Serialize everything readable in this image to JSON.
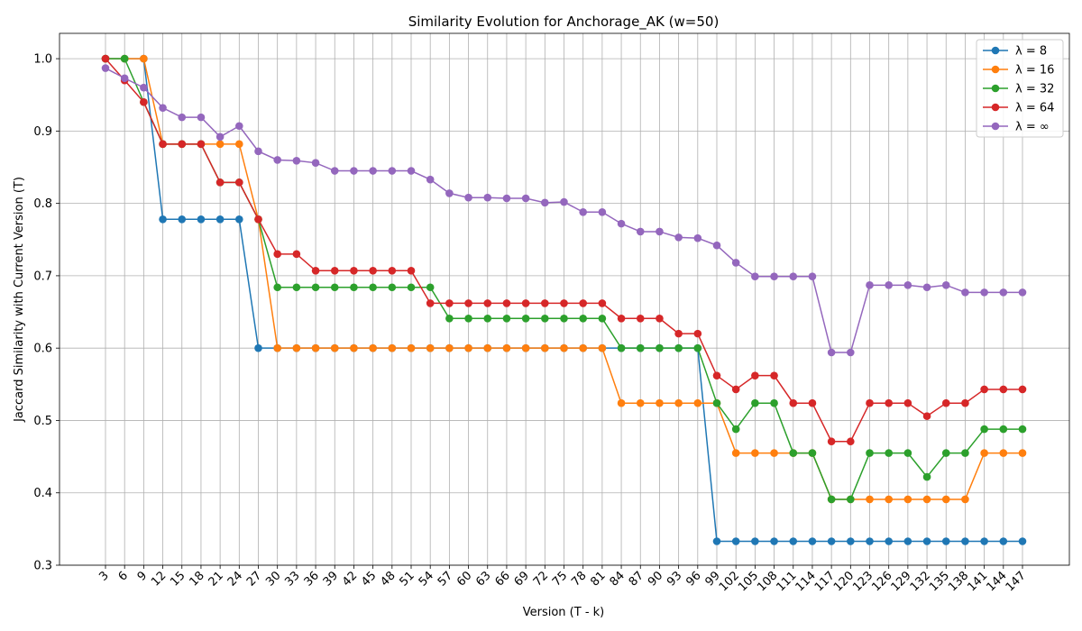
{
  "chart_data": {
    "type": "line",
    "title": "Similarity Evolution for Anchorage_AK (w=50)",
    "xlabel": "Version (T - k)",
    "ylabel": "Jaccard Similarity with Current Version (T)",
    "ylim": [
      0.3,
      1.035
    ],
    "yticks": [
      0.3,
      0.4,
      0.5,
      0.6,
      0.7,
      0.8,
      0.9,
      1.0
    ],
    "grid": true,
    "legend_position": "top-right",
    "x": [
      3,
      6,
      9,
      12,
      15,
      18,
      21,
      24,
      27,
      30,
      33,
      36,
      39,
      42,
      45,
      48,
      51,
      54,
      57,
      60,
      63,
      66,
      69,
      72,
      75,
      78,
      81,
      84,
      87,
      90,
      93,
      96,
      99,
      102,
      105,
      108,
      111,
      114,
      117,
      120,
      123,
      126,
      129,
      132,
      135,
      138,
      141,
      144,
      147
    ],
    "series": [
      {
        "name": "λ = 8",
        "color": "#1f77b4",
        "values": [
          1.0,
          1.0,
          1.0,
          0.778,
          0.778,
          0.778,
          0.778,
          0.778,
          0.6,
          0.6,
          0.6,
          0.6,
          0.6,
          0.6,
          0.6,
          0.6,
          0.6,
          0.6,
          0.6,
          0.6,
          0.6,
          0.6,
          0.6,
          0.6,
          0.6,
          0.6,
          0.6,
          0.6,
          0.6,
          0.6,
          0.6,
          0.6,
          0.333,
          0.333,
          0.333,
          0.333,
          0.333,
          0.333,
          0.333,
          0.333,
          0.333,
          0.333,
          0.333,
          0.333,
          0.333,
          0.333,
          0.333,
          0.333,
          0.333
        ]
      },
      {
        "name": "λ = 16",
        "color": "#ff7f0e",
        "values": [
          1.0,
          1.0,
          1.0,
          0.882,
          0.882,
          0.882,
          0.882,
          0.882,
          0.778,
          0.6,
          0.6,
          0.6,
          0.6,
          0.6,
          0.6,
          0.6,
          0.6,
          0.6,
          0.6,
          0.6,
          0.6,
          0.6,
          0.6,
          0.6,
          0.6,
          0.6,
          0.6,
          0.524,
          0.524,
          0.524,
          0.524,
          0.524,
          0.524,
          0.455,
          0.455,
          0.455,
          0.455,
          0.455,
          0.391,
          0.391,
          0.391,
          0.391,
          0.391,
          0.391,
          0.391,
          0.391,
          0.455,
          0.455,
          0.455
        ]
      },
      {
        "name": "λ = 32",
        "color": "#2ca02c",
        "values": [
          1.0,
          1.0,
          0.94,
          0.882,
          0.882,
          0.882,
          0.829,
          0.829,
          0.778,
          0.684,
          0.684,
          0.684,
          0.684,
          0.684,
          0.684,
          0.684,
          0.684,
          0.684,
          0.641,
          0.641,
          0.641,
          0.641,
          0.641,
          0.641,
          0.641,
          0.641,
          0.641,
          0.6,
          0.6,
          0.6,
          0.6,
          0.6,
          0.524,
          0.488,
          0.524,
          0.524,
          0.455,
          0.455,
          0.391,
          0.391,
          0.455,
          0.455,
          0.455,
          0.422,
          0.455,
          0.455,
          0.488,
          0.488,
          0.488
        ]
      },
      {
        "name": "λ = 64",
        "color": "#d62728",
        "values": [
          1.0,
          0.97,
          0.94,
          0.882,
          0.882,
          0.882,
          0.829,
          0.829,
          0.778,
          0.73,
          0.73,
          0.707,
          0.707,
          0.707,
          0.707,
          0.707,
          0.707,
          0.662,
          0.662,
          0.662,
          0.662,
          0.662,
          0.662,
          0.662,
          0.662,
          0.662,
          0.662,
          0.641,
          0.641,
          0.641,
          0.62,
          0.62,
          0.562,
          0.543,
          0.562,
          0.562,
          0.524,
          0.524,
          0.471,
          0.471,
          0.524,
          0.524,
          0.524,
          0.506,
          0.524,
          0.524,
          0.543,
          0.543,
          0.543
        ]
      },
      {
        "name": "λ = ∞",
        "color": "#9467bd",
        "values": [
          0.987,
          0.973,
          0.96,
          0.932,
          0.919,
          0.919,
          0.892,
          0.907,
          0.872,
          0.86,
          0.859,
          0.856,
          0.845,
          0.845,
          0.845,
          0.845,
          0.845,
          0.833,
          0.814,
          0.808,
          0.808,
          0.807,
          0.807,
          0.801,
          0.802,
          0.788,
          0.788,
          0.772,
          0.761,
          0.761,
          0.753,
          0.752,
          0.742,
          0.718,
          0.699,
          0.699,
          0.699,
          0.699,
          0.594,
          0.594,
          0.687,
          0.687,
          0.687,
          0.684,
          0.687,
          0.677,
          0.677,
          0.677,
          0.677
        ]
      }
    ]
  }
}
